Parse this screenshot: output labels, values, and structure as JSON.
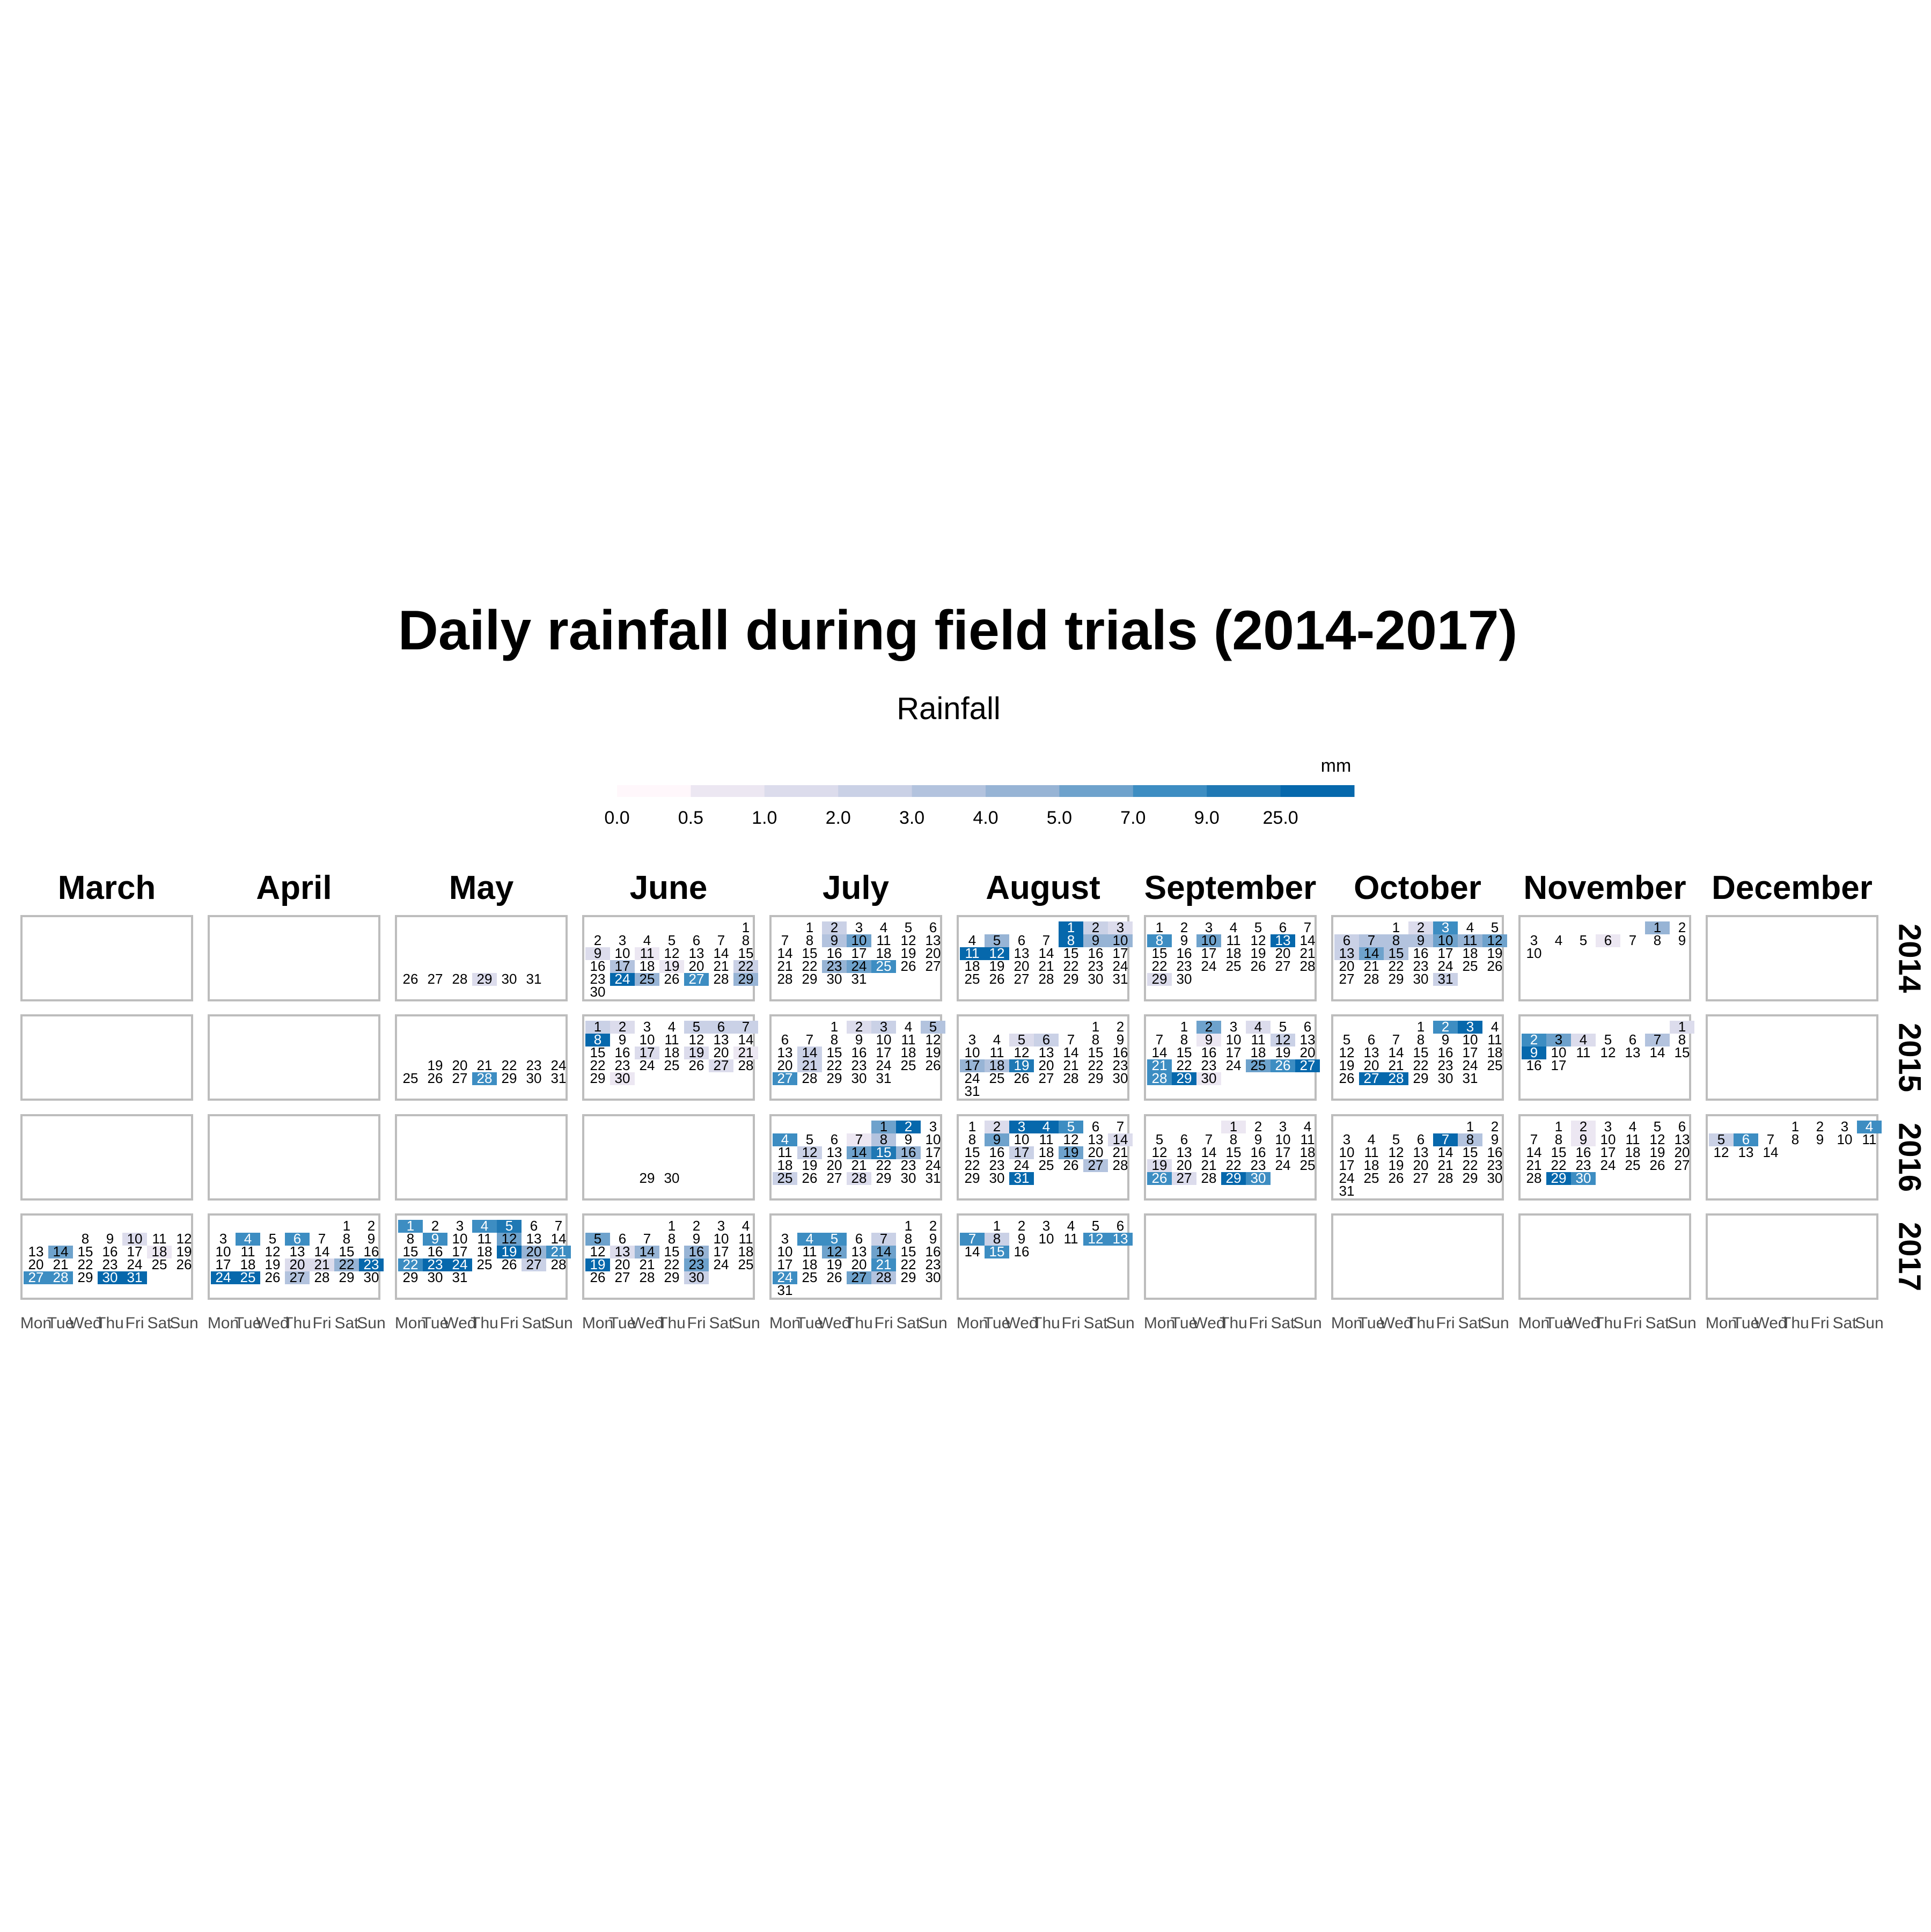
{
  "chart_data": {
    "type": "heatmap",
    "title": "Daily rainfall during field trials (2014-2017)",
    "legend": {
      "title": "Rainfall",
      "unit": "mm",
      "placement": "top",
      "breaks": [
        "0.0",
        "0.5",
        "1.0",
        "2.0",
        "3.0",
        "4.0",
        "5.0",
        "7.0",
        "9.0",
        "25.0"
      ],
      "colors": [
        "#fff7fb",
        "#ece7f2",
        "#dcdcec",
        "#cad1e6",
        "#b3c3de",
        "#97b4d5",
        "#6ea2cc",
        "#3d8dc2",
        "#1f78b4",
        "#0668ac"
      ]
    },
    "months": [
      "March",
      "April",
      "May",
      "June",
      "July",
      "August",
      "September",
      "October",
      "November",
      "December"
    ],
    "month_numbers": [
      3,
      4,
      5,
      6,
      7,
      8,
      9,
      10,
      11,
      12
    ],
    "years": [
      "2014",
      "2015",
      "2016",
      "2017"
    ],
    "weekdays": [
      "Mon",
      "Tue",
      "Wed",
      "Thu",
      "Fri",
      "Sat",
      "Sun"
    ],
    "ranges": [
      {
        "year": 2014,
        "start": "05-26",
        "end": "11-10"
      },
      {
        "year": 2015,
        "start": "05-19",
        "end": "11-17"
      },
      {
        "year": 2016,
        "start": "06-29",
        "end": "12-14"
      },
      {
        "year": 2017,
        "start": "03-08",
        "end": "08-16"
      }
    ],
    "rain_levels": {
      "2014": {
        "05": {
          "29": 2
        },
        "06": {
          "9": 2,
          "11": 1,
          "17": 4,
          "19": 1,
          "22": 3,
          "24": 9,
          "25": 5,
          "27": 7,
          "29": 5
        },
        "07": {
          "2": 3,
          "9": 4,
          "10": 6,
          "23": 5,
          "24": 6,
          "25": 7
        },
        "08": {
          "1": 9,
          "2": 3,
          "3": 2,
          "5": 5,
          "8": 9,
          "9": 5,
          "10": 5,
          "11": 9,
          "12": 9
        },
        "09": {
          "8": 7,
          "10": 6,
          "13": 9,
          "29": 2
        },
        "10": {
          "2": 2,
          "3": 7,
          "6": 3,
          "7": 4,
          "8": 4,
          "9": 4,
          "10": 6,
          "11": 5,
          "12": 6,
          "13": 3,
          "14": 6,
          "15": 4,
          "31": 3
        },
        "11": {
          "1": 5,
          "6": 1
        }
      },
      "2015": {
        "05": {
          "28": 7
        },
        "06": {
          "1": 3,
          "2": 2,
          "5": 3,
          "6": 3,
          "7": 3,
          "8": 9,
          "17": 2,
          "19": 2,
          "21": 1,
          "27": 2,
          "30": 1
        },
        "07": {
          "2": 2,
          "3": 3,
          "5": 4,
          "14": 3,
          "21": 3,
          "27": 7
        },
        "08": {
          "5": 2,
          "6": 3,
          "17": 5,
          "18": 4,
          "19": 8
        },
        "09": {
          "2": 6,
          "4": 2,
          "9": 1,
          "12": 3,
          "21": 7,
          "25": 6,
          "26": 7,
          "27": 9,
          "28": 7,
          "29": 9,
          "30": 1
        },
        "10": {
          "2": 7,
          "3": 9,
          "27": 9,
          "28": 9
        },
        "11": {
          "1": 2,
          "2": 7,
          "3": 6,
          "4": 2,
          "7": 4,
          "9": 9
        }
      },
      "2016": {
        "07": {
          "1": 6,
          "2": 9,
          "4": 7,
          "7": 1,
          "8": 4,
          "12": 3,
          "14": 6,
          "15": 8,
          "16": 5,
          "28": 2,
          "25": 3
        },
        "08": {
          "2": 2,
          "3": 9,
          "4": 9,
          "5": 7,
          "9": 6,
          "14": 2,
          "17": 3,
          "19": 6,
          "27": 4,
          "31": 9
        },
        "09": {
          "1": 1,
          "19": 2,
          "26": 7,
          "27": 2,
          "29": 9,
          "30": 7
        },
        "10": {
          "7": 9,
          "8": 4
        },
        "11": {
          "2": 1,
          "9": 1,
          "29": 9,
          "30": 7
        },
        "12": {
          "4": 7,
          "5": 3,
          "6": 7
        }
      },
      "2017": {
        "03": {
          "10": 2,
          "14": 6,
          "18": 1,
          "27": 7,
          "28": 7,
          "30": 9,
          "31": 9
        },
        "04": {
          "4": 7,
          "6": 7,
          "20": 2,
          "21": 2,
          "22": 5,
          "23": 9,
          "24": 9,
          "25": 9,
          "27": 4
        },
        "05": {
          "1": 7,
          "4": 7,
          "5": 8,
          "9": 7,
          "12": 6,
          "19": 9,
          "20": 5,
          "21": 7,
          "22": 7,
          "23": 9,
          "24": 9,
          "27": 3
        },
        "06": {
          "5": 6,
          "13": 2,
          "14": 5,
          "16": 5,
          "19": 9,
          "23": 6,
          "30": 3
        },
        "07": {
          "4": 7,
          "5": 7,
          "7": 3,
          "12": 6,
          "14": 6,
          "21": 7,
          "24": 7,
          "27": 6,
          "28": 4
        },
        "08": {
          "7": 7,
          "8": 3,
          "12": 7,
          "13": 7,
          "15": 7
        }
      }
    },
    "xlabel": "",
    "ylabel": ""
  }
}
